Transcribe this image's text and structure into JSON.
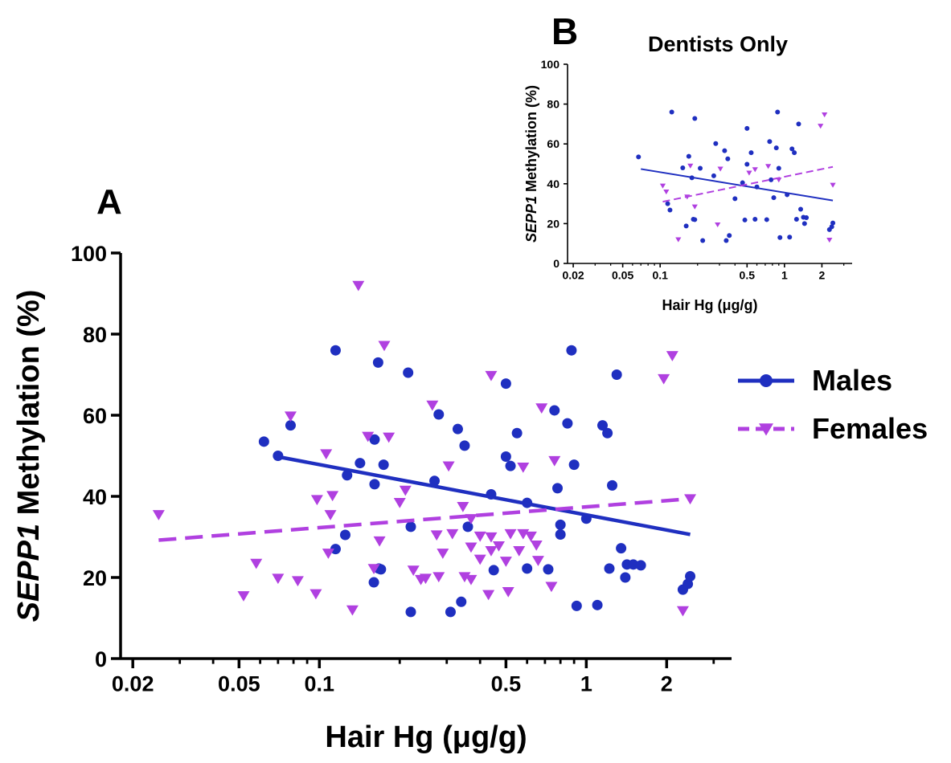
{
  "panels": {
    "a": {
      "letter": "A"
    },
    "b": {
      "letter": "B",
      "title": "Dentists Only"
    }
  },
  "chart_data": [
    {
      "panel": "A",
      "type": "scatter",
      "title": "",
      "xlabel": "Hair  Hg  (μg/g)",
      "ylabel_italic": "SEPP1",
      "ylabel_rest": " Methylation (%)",
      "x_scale": "log",
      "xlim": [
        0.018,
        3.5
      ],
      "ylim": [
        0,
        100
      ],
      "x_ticks": [
        0.02,
        0.05,
        0.1,
        0.5,
        1,
        2
      ],
      "x_tick_labels": [
        "0.02",
        "0.05",
        "0.1",
        "0.5",
        "1",
        "2"
      ],
      "y_ticks": [
        0,
        20,
        40,
        60,
        80,
        100
      ],
      "y_tick_labels": [
        "0",
        "20",
        "40",
        "60",
        "80",
        "100"
      ],
      "legend_position": "right",
      "colors": {
        "males": "#1f2fc0",
        "females": "#b040e0"
      },
      "series": [
        {
          "name": "Males",
          "marker": "circle",
          "line_style": "solid",
          "fit": {
            "x": [
              0.072,
              2.45
            ],
            "y": [
              49.6,
              30.6
            ]
          },
          "points": [
            [
              0.062,
              53.5
            ],
            [
              0.07,
              50
            ],
            [
              0.078,
              57.5
            ],
            [
              0.115,
              76
            ],
            [
              0.125,
              30.5
            ],
            [
              0.115,
              27
            ],
            [
              0.127,
              45.2
            ],
            [
              0.142,
              48.2
            ],
            [
              0.161,
              54
            ],
            [
              0.161,
              43
            ],
            [
              0.17,
              22
            ],
            [
              0.166,
              73
            ],
            [
              0.174,
              47.8
            ],
            [
              0.16,
              18.8
            ],
            [
              0.167,
              22.2
            ],
            [
              0.215,
              70.5
            ],
            [
              0.22,
              32.5
            ],
            [
              0.27,
              43.8
            ],
            [
              0.28,
              60.2
            ],
            [
              0.22,
              11.5
            ],
            [
              0.33,
              56.6
            ],
            [
              0.35,
              52.5
            ],
            [
              0.34,
              14
            ],
            [
              0.36,
              32.5
            ],
            [
              0.31,
              11.5
            ],
            [
              0.44,
              40.5
            ],
            [
              0.45,
              21.8
            ],
            [
              0.5,
              67.8
            ],
            [
              0.5,
              49.8
            ],
            [
              0.52,
              47.5
            ],
            [
              0.55,
              55.6
            ],
            [
              0.6,
              38.4
            ],
            [
              0.6,
              22.2
            ],
            [
              0.72,
              22
            ],
            [
              0.76,
              61.2
            ],
            [
              0.78,
              42
            ],
            [
              0.8,
              33
            ],
            [
              0.8,
              30.6
            ],
            [
              0.85,
              58
            ],
            [
              0.88,
              76
            ],
            [
              0.9,
              47.8
            ],
            [
              0.92,
              13
            ],
            [
              1.0,
              34.5
            ],
            [
              1.1,
              13.2
            ],
            [
              1.15,
              57.5
            ],
            [
              1.2,
              55.6
            ],
            [
              1.25,
              42.7
            ],
            [
              1.22,
              22.2
            ],
            [
              1.3,
              70
            ],
            [
              1.35,
              27.2
            ],
            [
              1.42,
              23.2
            ],
            [
              1.4,
              20
            ],
            [
              1.5,
              23.2
            ],
            [
              1.6,
              23
            ],
            [
              2.3,
              17
            ],
            [
              2.4,
              18.4
            ],
            [
              2.45,
              20.3
            ]
          ]
        },
        {
          "name": "Females",
          "marker": "triangle-down",
          "line_style": "dashed",
          "fit": {
            "x": [
              0.025,
              2.45
            ],
            "y": [
              29.2,
              39.4
            ]
          },
          "points": [
            [
              0.025,
              35.5
            ],
            [
              0.052,
              15.5
            ],
            [
              0.058,
              23.5
            ],
            [
              0.07,
              19.8
            ],
            [
              0.078,
              59.8
            ],
            [
              0.083,
              19.2
            ],
            [
              0.097,
              16
            ],
            [
              0.098,
              39.2
            ],
            [
              0.106,
              50.5
            ],
            [
              0.108,
              26
            ],
            [
              0.11,
              35.5
            ],
            [
              0.112,
              40.2
            ],
            [
              0.133,
              12
            ],
            [
              0.14,
              92
            ],
            [
              0.152,
              54.8
            ],
            [
              0.16,
              22.2
            ],
            [
              0.168,
              29
            ],
            [
              0.175,
              77.2
            ],
            [
              0.182,
              54.6
            ],
            [
              0.2,
              38.5
            ],
            [
              0.21,
              41.5
            ],
            [
              0.225,
              21.8
            ],
            [
              0.24,
              19.5
            ],
            [
              0.25,
              19.8
            ],
            [
              0.265,
              62.5
            ],
            [
              0.275,
              30.5
            ],
            [
              0.28,
              20.2
            ],
            [
              0.29,
              26
            ],
            [
              0.305,
              47.5
            ],
            [
              0.315,
              30.8
            ],
            [
              0.345,
              37.5
            ],
            [
              0.35,
              20.2
            ],
            [
              0.37,
              27.5
            ],
            [
              0.37,
              34.5
            ],
            [
              0.37,
              19.5
            ],
            [
              0.4,
              24.5
            ],
            [
              0.4,
              30.2
            ],
            [
              0.43,
              15.8
            ],
            [
              0.44,
              26.6
            ],
            [
              0.44,
              69.8
            ],
            [
              0.44,
              30
            ],
            [
              0.47,
              27.8
            ],
            [
              0.5,
              24
            ],
            [
              0.51,
              16.5
            ],
            [
              0.52,
              30.8
            ],
            [
              0.56,
              26.6
            ],
            [
              0.58,
              47.2
            ],
            [
              0.58,
              30.8
            ],
            [
              0.62,
              30.2
            ],
            [
              0.65,
              28
            ],
            [
              0.68,
              61.8
            ],
            [
              0.66,
              24.2
            ],
            [
              0.74,
              17.8
            ],
            [
              0.76,
              48.8
            ],
            [
              1.95,
              69
            ],
            [
              2.1,
              74.7
            ],
            [
              2.3,
              11.8
            ],
            [
              2.45,
              39.4
            ]
          ]
        }
      ]
    },
    {
      "panel": "B",
      "type": "scatter",
      "title": "Dentists Only",
      "xlabel": "Hair Hg (μg/g)",
      "ylabel_italic": "SEPP1",
      "ylabel_rest": " Methylation (%)",
      "x_scale": "log",
      "xlim": [
        0.018,
        3.5
      ],
      "ylim": [
        0,
        100
      ],
      "x_ticks": [
        0.02,
        0.05,
        0.1,
        0.5,
        1,
        2
      ],
      "x_tick_labels": [
        "0.02",
        "0.05",
        "0.1",
        "0.5",
        "1",
        "2"
      ],
      "y_ticks": [
        0,
        20,
        40,
        60,
        80,
        100
      ],
      "y_tick_labels": [
        "0",
        "20",
        "40",
        "60",
        "80",
        "100"
      ],
      "colors": {
        "males": "#1f2fc0",
        "females": "#b040e0"
      },
      "series": [
        {
          "marker": "circle",
          "line_style": "solid",
          "fit": {
            "x": [
              0.07,
              2.45
            ],
            "y": [
              47.4,
              31.6
            ]
          },
          "points": [
            [
              0.067,
              53.5
            ],
            [
              0.115,
              30
            ],
            [
              0.12,
              26.8
            ],
            [
              0.124,
              76
            ],
            [
              0.152,
              48
            ],
            [
              0.162,
              18.8
            ],
            [
              0.17,
              53.8
            ],
            [
              0.18,
              43
            ],
            [
              0.185,
              22.2
            ],
            [
              0.19,
              22
            ],
            [
              0.19,
              72.8
            ],
            [
              0.21,
              47.8
            ],
            [
              0.22,
              11.5
            ],
            [
              0.27,
              44
            ],
            [
              0.28,
              60.2
            ],
            [
              0.33,
              56.6
            ],
            [
              0.35,
              52.5
            ],
            [
              0.34,
              11.5
            ],
            [
              0.36,
              14
            ],
            [
              0.4,
              32.5
            ],
            [
              0.46,
              40.5
            ],
            [
              0.48,
              21.8
            ],
            [
              0.5,
              67.8
            ],
            [
              0.54,
              55.6
            ],
            [
              0.5,
              49.8
            ],
            [
              0.58,
              22.2
            ],
            [
              0.6,
              38.4
            ],
            [
              0.72,
              22
            ],
            [
              0.76,
              61.2
            ],
            [
              0.78,
              42
            ],
            [
              0.82,
              33
            ],
            [
              0.86,
              58
            ],
            [
              0.88,
              76
            ],
            [
              0.9,
              47.8
            ],
            [
              0.92,
              13
            ],
            [
              1.05,
              34.5
            ],
            [
              1.1,
              13.2
            ],
            [
              1.15,
              57.5
            ],
            [
              1.2,
              55.6
            ],
            [
              1.3,
              70
            ],
            [
              1.35,
              27.2
            ],
            [
              1.25,
              22.2
            ],
            [
              1.42,
              23.2
            ],
            [
              1.5,
              23
            ],
            [
              1.45,
              20
            ],
            [
              2.3,
              17
            ],
            [
              2.4,
              18.4
            ],
            [
              2.45,
              20.3
            ]
          ]
        },
        {
          "marker": "triangle-down",
          "line_style": "dashed",
          "fit": {
            "x": [
              0.105,
              2.45
            ],
            "y": [
              31,
              48.5
            ]
          },
          "points": [
            [
              0.105,
              39
            ],
            [
              0.112,
              36
            ],
            [
              0.14,
              12
            ],
            [
              0.165,
              33.5
            ],
            [
              0.175,
              49
            ],
            [
              0.19,
              28.5
            ],
            [
              0.29,
              19.5
            ],
            [
              0.305,
              47.5
            ],
            [
              0.52,
              45.5
            ],
            [
              0.58,
              47.2
            ],
            [
              0.74,
              48.8
            ],
            [
              0.9,
              42
            ],
            [
              1.95,
              69
            ],
            [
              2.1,
              74.7
            ],
            [
              2.3,
              11.8
            ],
            [
              2.45,
              39.4
            ]
          ]
        }
      ]
    }
  ]
}
